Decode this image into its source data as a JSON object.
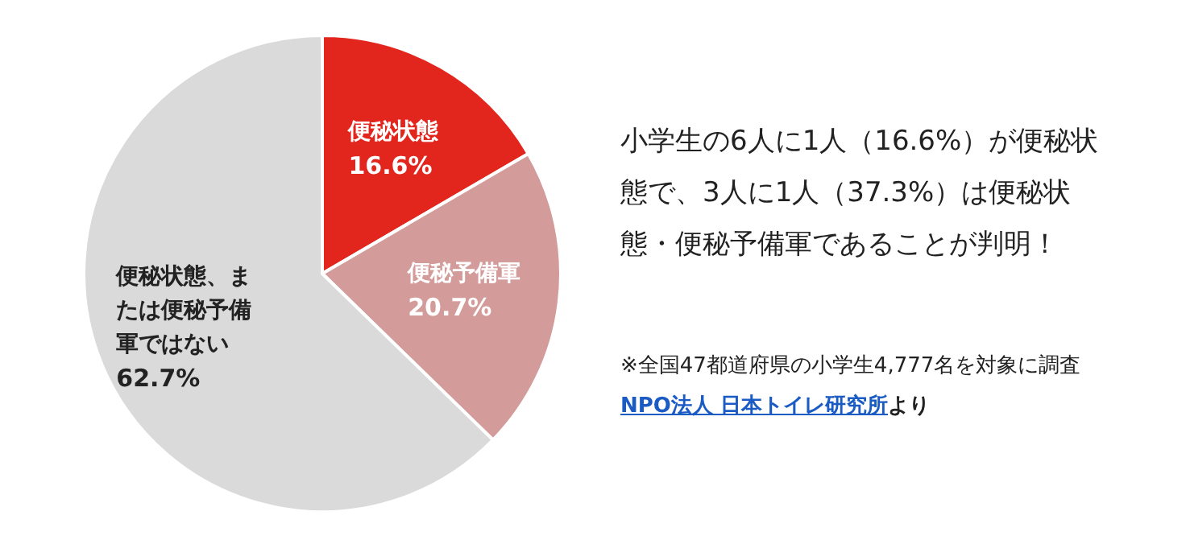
{
  "chart_data": {
    "type": "pie",
    "categories": [
      "便秘状態",
      "便秘予備軍",
      "便秘状態、または便秘予備軍ではない"
    ],
    "values": [
      16.6,
      20.7,
      62.7
    ],
    "colors": [
      "#e2261d",
      "#d39c9b",
      "#dadada"
    ],
    "value_labels": [
      "16.6%",
      "20.7%",
      "62.7%"
    ],
    "annotations": [
      "小学生の6人に1人（16.6%）が便秘状態で、3人に1人（37.3%）は便秘状態・便秘予備軍であることが判明！",
      "※全国47都道府県の小学生4,777名を対象に調査",
      "NPO法人 日本トイレ研究所",
      "より"
    ]
  }
}
